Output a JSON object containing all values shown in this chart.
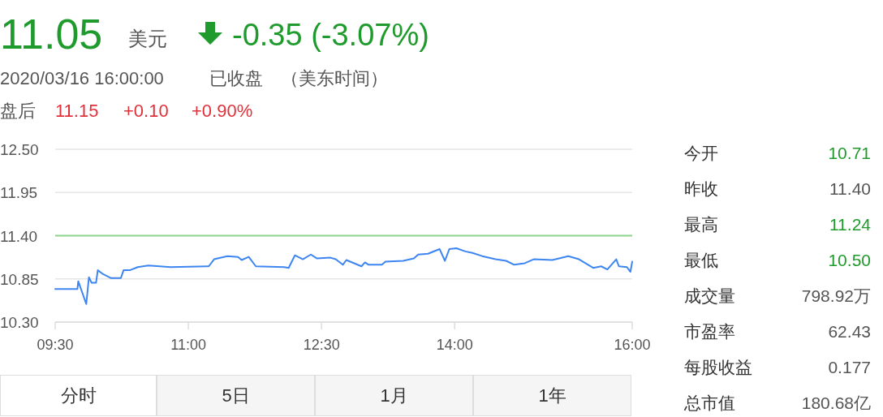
{
  "chart_data": {
    "type": "line",
    "annotations": [
      "11.05",
      "美元",
      "-0.35 (-3.07%)",
      "2020/03/16 16:00:00",
      "已收盘",
      "（美东时间）",
      "盘后",
      "11.15",
      "+0.10",
      "+0.90%",
      "今开",
      "10.71",
      "昨收",
      "11.40",
      "最高",
      "11.24",
      "最低",
      "10.50",
      "成交量",
      "798.92万",
      "市盈率",
      "62.43",
      "每股收益",
      "0.177",
      "总市值",
      "180.68亿",
      "分时",
      "5日",
      "1月",
      "1年"
    ],
    "series": [
      {
        "color": "#3d85f0",
        "x": [
          9.5,
          9.75,
          9.76,
          9.85,
          9.88,
          9.91,
          9.96,
          9.98,
          10.04,
          10.13,
          10.24,
          10.27,
          10.34,
          10.43,
          10.55,
          10.8,
          11.23,
          11.29,
          11.44,
          11.56,
          11.6,
          11.68,
          11.76,
          12.08,
          12.13,
          12.2,
          12.29,
          12.38,
          12.45,
          12.6,
          12.66,
          12.74,
          12.78,
          12.95,
          12.99,
          13.03,
          13.18,
          13.22,
          13.42,
          13.54,
          13.59,
          13.7,
          13.83,
          13.89,
          13.94,
          14.02,
          14.12,
          14.2,
          14.31,
          14.46,
          14.58,
          14.67,
          14.79,
          14.89,
          15.1,
          15.28,
          15.4,
          15.56,
          15.65,
          15.72,
          15.82,
          15.85,
          15.94,
          15.98,
          16.0
        ],
        "values": [
          10.72,
          10.72,
          10.82,
          10.53,
          10.87,
          10.8,
          10.8,
          10.96,
          10.91,
          10.86,
          10.86,
          10.96,
          10.96,
          11.0,
          11.02,
          11.0,
          11.01,
          11.1,
          11.14,
          11.13,
          11.09,
          11.13,
          11.01,
          11.0,
          10.99,
          11.15,
          11.1,
          11.16,
          11.11,
          11.12,
          11.1,
          11.03,
          11.09,
          11.01,
          11.06,
          11.03,
          11.03,
          11.07,
          11.08,
          11.11,
          11.16,
          11.17,
          11.23,
          11.08,
          11.23,
          11.24,
          11.2,
          11.18,
          11.14,
          11.1,
          11.08,
          11.03,
          11.05,
          11.1,
          11.09,
          11.14,
          11.1,
          10.99,
          11.01,
          10.97,
          11.1,
          11.01,
          11.0,
          10.94,
          11.07
        ]
      }
    ],
    "xlim": [
      9.5,
      16.0
    ],
    "xticks": [
      {
        "value": 9.5,
        "label": "09:30"
      },
      {
        "value": 11.0,
        "label": "11:00"
      },
      {
        "value": 12.5,
        "label": "12:30"
      },
      {
        "value": 14.0,
        "label": "14:00"
      },
      {
        "value": 16.0,
        "label": "16:00"
      }
    ],
    "ylim": [
      10.3,
      12.5
    ],
    "yticks": [
      {
        "value": 10.3,
        "label": "10.30"
      },
      {
        "value": 10.85,
        "label": "10.85"
      },
      {
        "value": 11.4,
        "label": "11.40"
      },
      {
        "value": 11.95,
        "label": "11.95"
      },
      {
        "value": 12.5,
        "label": "12.50"
      }
    ],
    "grid": "y",
    "ref_lines": [
      {
        "axis": "y",
        "value": 11.4,
        "color": "#8fd48f"
      }
    ]
  }
}
